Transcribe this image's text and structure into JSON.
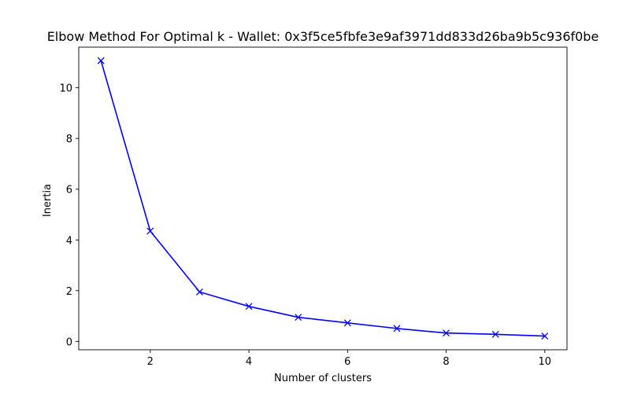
{
  "chart_data": {
    "type": "line",
    "title": "Elbow Method For Optimal k - Wallet: 0x3f5ce5fbfe3e9af3971dd833d26ba9b5c936f0be",
    "xlabel": "Number of clusters",
    "ylabel": "Inertia",
    "x": [
      1,
      2,
      3,
      4,
      5,
      6,
      7,
      8,
      9,
      10
    ],
    "series": [
      {
        "values": [
          11.07,
          4.35,
          1.95,
          1.38,
          0.95,
          0.73,
          0.51,
          0.33,
          0.28,
          0.21
        ],
        "color": "#0000ff",
        "marker": "x",
        "line_style": "solid"
      }
    ],
    "xlim": [
      0.55,
      10.45
    ],
    "ylim": [
      -0.33,
      11.6
    ],
    "xticks": [
      2,
      4,
      6,
      8,
      10
    ],
    "yticks": [
      0,
      2,
      4,
      6,
      8,
      10
    ],
    "grid": false,
    "legend": "none"
  }
}
